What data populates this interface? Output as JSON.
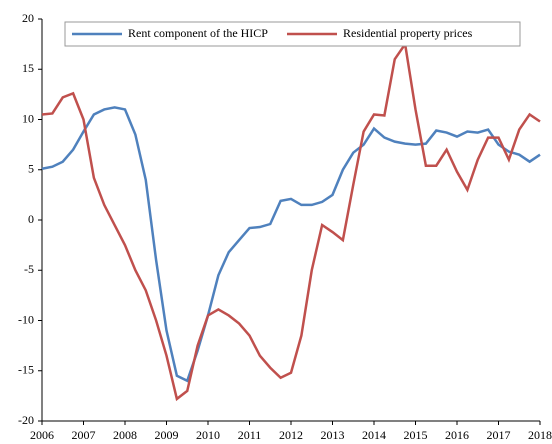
{
  "chart_data": {
    "type": "line",
    "x": [
      2006,
      2006.25,
      2006.5,
      2006.75,
      2007,
      2007.25,
      2007.5,
      2007.75,
      2008,
      2008.25,
      2008.5,
      2008.75,
      2009,
      2009.25,
      2009.5,
      2009.75,
      2010,
      2010.25,
      2010.5,
      2010.75,
      2011,
      2011.25,
      2011.5,
      2011.75,
      2012,
      2012.25,
      2012.5,
      2012.75,
      2013,
      2013.25,
      2013.5,
      2013.75,
      2014,
      2014.25,
      2014.5,
      2014.75,
      2015,
      2015.25,
      2015.5,
      2015.75,
      2016,
      2016.25,
      2016.5,
      2016.75,
      2017,
      2017.25,
      2017.5,
      2017.75,
      2018
    ],
    "series": [
      {
        "name": "Rent component of the HICP",
        "color": "#4f81bd",
        "values": [
          5.1,
          5.3,
          5.8,
          7.0,
          8.8,
          10.5,
          11.0,
          11.2,
          11.0,
          8.5,
          4.0,
          -4.0,
          -11.0,
          -15.5,
          -16.0,
          -13.0,
          -9.5,
          -5.5,
          -3.2,
          -2.0,
          -0.8,
          -0.7,
          -0.4,
          1.9,
          2.1,
          1.5,
          1.5,
          1.8,
          2.5,
          5.0,
          6.7,
          7.5,
          9.1,
          8.2,
          7.8,
          7.6,
          7.5,
          7.6,
          8.9,
          8.7,
          8.3,
          8.8,
          8.7,
          9.0,
          7.5,
          6.8,
          6.5,
          5.8,
          6.5
        ]
      },
      {
        "name": "Residential property prices",
        "color": "#c0504d",
        "values": [
          10.5,
          10.6,
          12.2,
          12.6,
          10.0,
          4.2,
          1.5,
          -0.5,
          -2.5,
          -5.0,
          -7.0,
          -10.0,
          -13.5,
          -17.8,
          -17.0,
          -12.5,
          -9.5,
          -8.9,
          -9.5,
          -10.3,
          -11.5,
          -13.5,
          -14.7,
          -15.7,
          -15.2,
          -11.5,
          -5.0,
          -0.5,
          -1.2,
          -2.0,
          3.5,
          8.8,
          10.5,
          10.4,
          16.0,
          17.5,
          11.0,
          5.4,
          5.4,
          7.0,
          4.8,
          3.0,
          6.0,
          8.2,
          8.2,
          6.0,
          9.0,
          10.5,
          9.8
        ]
      }
    ],
    "xlim": [
      2006,
      2018
    ],
    "xticks": [
      2006,
      2007,
      2008,
      2009,
      2010,
      2011,
      2012,
      2013,
      2014,
      2015,
      2016,
      2017,
      2018
    ],
    "ylim": [
      -20,
      20
    ],
    "yticks": [
      -20,
      -15,
      -10,
      -5,
      0,
      5,
      10,
      15,
      20
    ],
    "grid": false,
    "legend": "top"
  }
}
